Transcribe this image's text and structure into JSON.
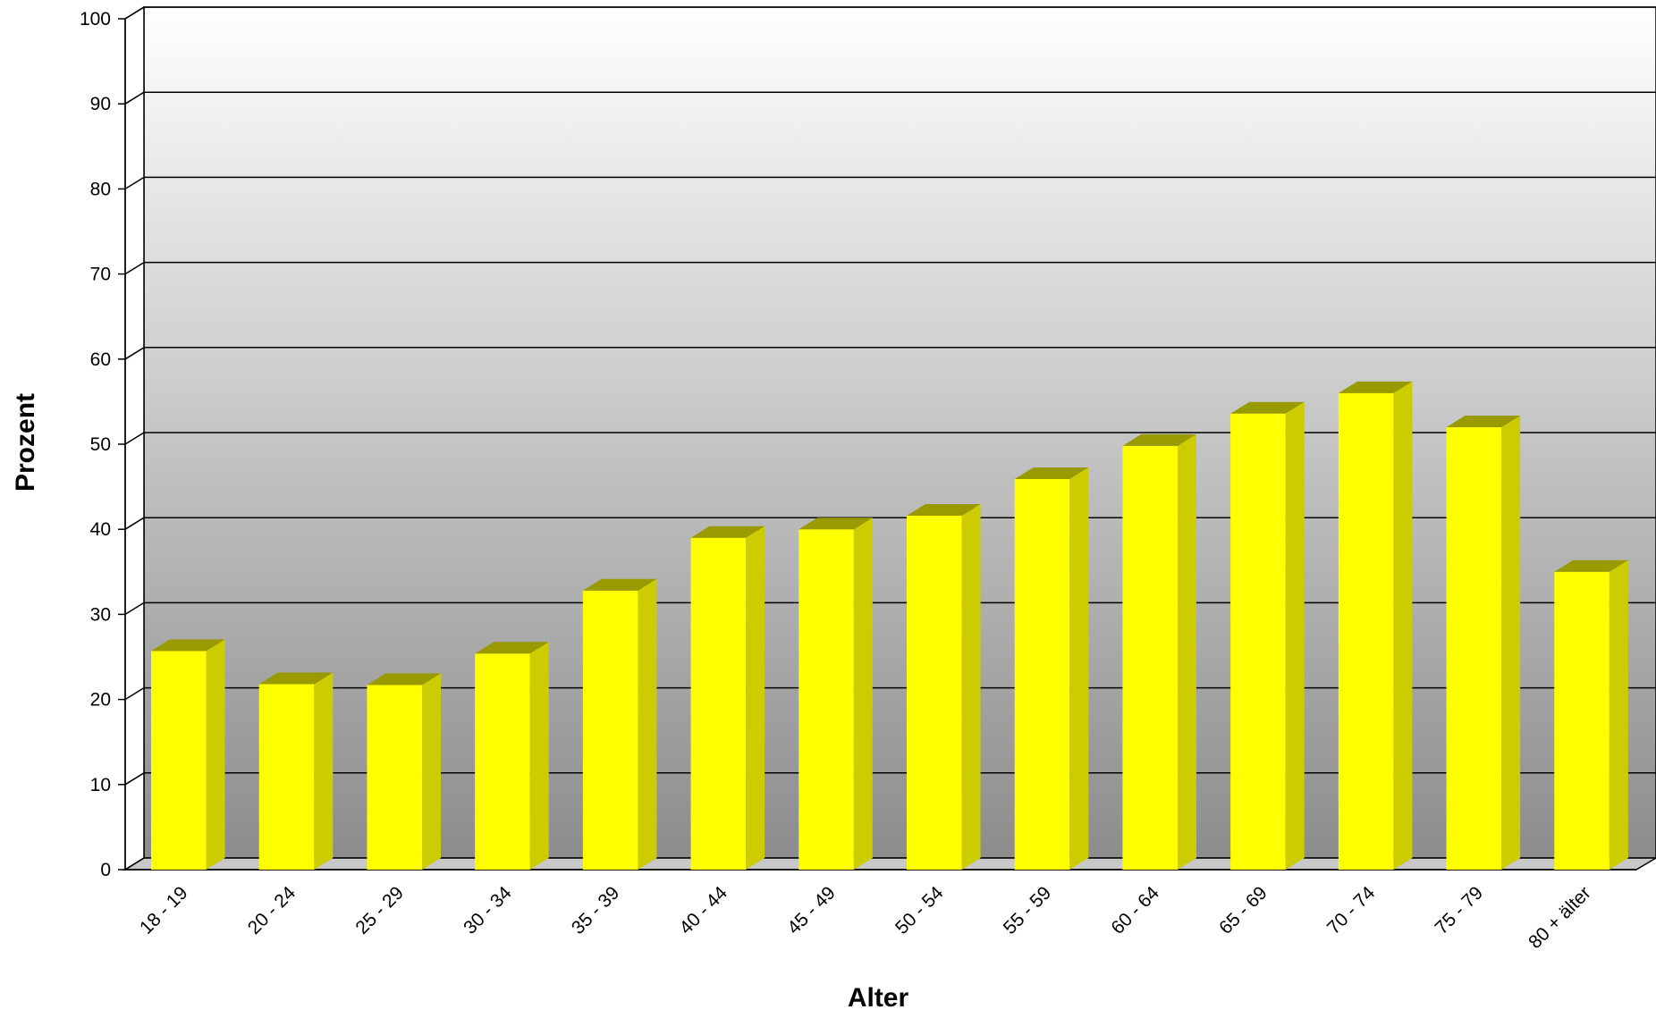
{
  "chart_data": {
    "type": "bar",
    "title": "",
    "xlabel": "Alter",
    "ylabel": "Prozent",
    "categories": [
      "18 - 19",
      "20 - 24",
      "25 - 29",
      "30 - 34",
      "35 - 39",
      "40 - 44",
      "45 - 49",
      "50 - 54",
      "55 - 59",
      "60 - 64",
      "65 - 69",
      "70 - 74",
      "75 - 79",
      "80 + älter"
    ],
    "series": [
      {
        "values": [
          25.7,
          21.8,
          21.7,
          25.4,
          32.8,
          39.0,
          40.0,
          41.6,
          45.9,
          49.8,
          53.6,
          56.0,
          52.0,
          35.0
        ]
      }
    ],
    "ylim": [
      0,
      100
    ],
    "yticks": [
      0,
      10,
      20,
      30,
      40,
      50,
      60,
      70,
      80,
      90,
      100
    ],
    "grid": true,
    "legend": "none",
    "colors": {
      "bar_front": "#ffff00",
      "bar_side": "#cccc00",
      "bar_top": "#999900",
      "wall_top": "#ffffff",
      "wall_bottom": "#8c8c8c"
    }
  }
}
